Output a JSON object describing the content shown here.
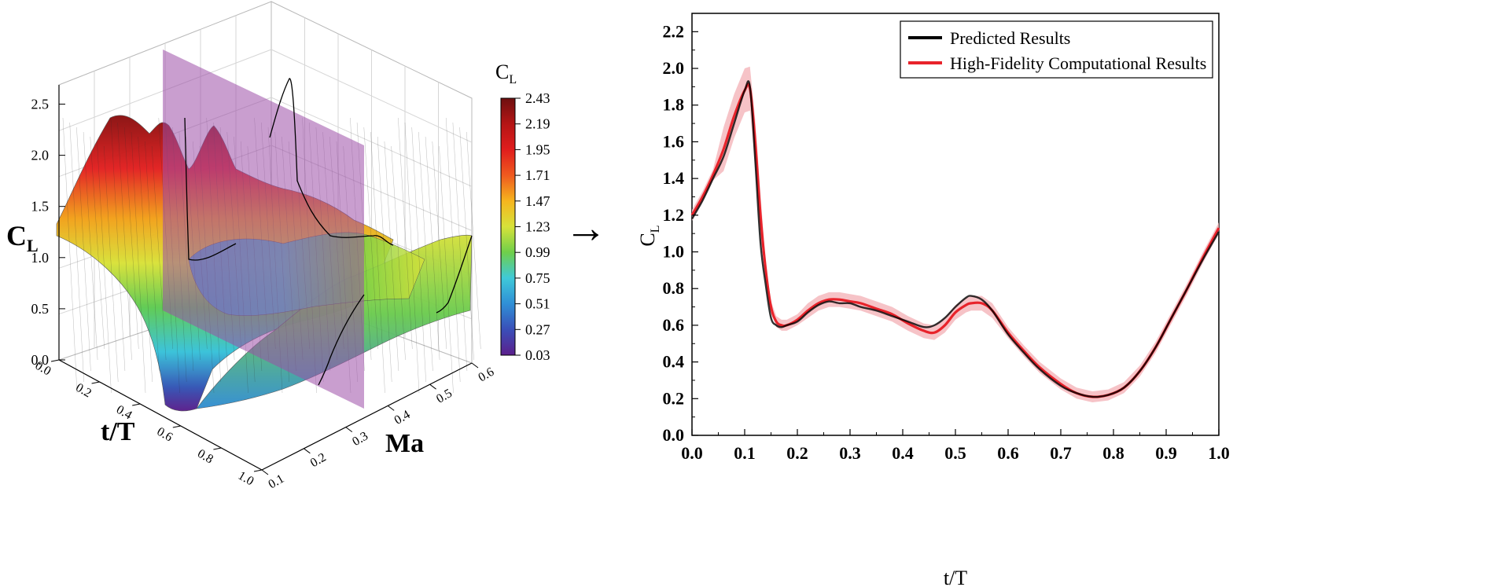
{
  "chart_data": [
    {
      "type": "surface3d",
      "title": "",
      "xlabel": "t/T",
      "ylabel": "Ma",
      "zlabel": "C",
      "zlabel_sub": "L",
      "x_ticks": [
        "0.0",
        "0.2",
        "0.4",
        "0.6",
        "0.8",
        "1.0"
      ],
      "y_ticks": [
        "0.1",
        "0.2",
        "0.3",
        "0.4",
        "0.5",
        "0.6"
      ],
      "z_ticks": [
        "0.0",
        "0.5",
        "1.0",
        "1.5",
        "2.0",
        "2.5"
      ],
      "xlim": [
        0,
        1
      ],
      "ylim": [
        0.1,
        0.6
      ],
      "zlim": [
        0,
        2.5
      ],
      "slice_plane_ma": 0.3,
      "slice_plane_color": "#9c4fa8",
      "colorbar": {
        "title": "C",
        "title_sub": "L",
        "ticks": [
          "0.03",
          "0.27",
          "0.51",
          "0.75",
          "0.99",
          "1.23",
          "1.47",
          "1.71",
          "1.95",
          "2.19",
          "2.43"
        ],
        "range": [
          0.03,
          2.43
        ],
        "colors": [
          "#5b1f8c",
          "#3a4fb8",
          "#2f8fd6",
          "#3fc9d9",
          "#6fcf4a",
          "#d7e23a",
          "#f6b51e",
          "#ef5a1f",
          "#e01d1d",
          "#b51515",
          "#6e1010"
        ]
      }
    },
    {
      "type": "line",
      "title": "",
      "xlabel": "t/T",
      "ylabel": "C",
      "ylabel_sub": "L",
      "xlim": [
        0,
        1
      ],
      "ylim": [
        0,
        2.3
      ],
      "x_ticks": [
        "0.0",
        "0.1",
        "0.2",
        "0.3",
        "0.4",
        "0.5",
        "0.6",
        "0.7",
        "0.8",
        "0.9",
        "1.0"
      ],
      "y_ticks": [
        "0.0",
        "0.2",
        "0.4",
        "0.6",
        "0.8",
        "1.0",
        "1.2",
        "1.4",
        "1.6",
        "1.8",
        "2.0",
        "2.2"
      ],
      "legend_position": "top-right",
      "series": [
        {
          "name": "Predicted Results",
          "color": "#000000",
          "x": [
            0.0,
            0.02,
            0.04,
            0.06,
            0.08,
            0.1,
            0.11,
            0.12,
            0.13,
            0.14,
            0.15,
            0.16,
            0.17,
            0.18,
            0.2,
            0.22,
            0.24,
            0.26,
            0.28,
            0.3,
            0.32,
            0.35,
            0.38,
            0.41,
            0.44,
            0.46,
            0.48,
            0.5,
            0.52,
            0.53,
            0.55,
            0.57,
            0.6,
            0.63,
            0.66,
            0.7,
            0.73,
            0.76,
            0.79,
            0.82,
            0.85,
            0.88,
            0.91,
            0.94,
            0.97,
            1.0
          ],
          "y": [
            1.18,
            1.28,
            1.4,
            1.52,
            1.7,
            1.88,
            1.9,
            1.5,
            1.05,
            0.82,
            0.64,
            0.6,
            0.59,
            0.6,
            0.62,
            0.67,
            0.71,
            0.73,
            0.72,
            0.72,
            0.7,
            0.68,
            0.65,
            0.62,
            0.59,
            0.6,
            0.64,
            0.7,
            0.75,
            0.76,
            0.74,
            0.68,
            0.55,
            0.45,
            0.36,
            0.27,
            0.23,
            0.21,
            0.22,
            0.26,
            0.35,
            0.48,
            0.64,
            0.8,
            0.96,
            1.11
          ]
        },
        {
          "name": "High-Fidelity Computational Results",
          "color": "#e8232b",
          "band_color": "#f5b8bd",
          "x": [
            0.0,
            0.02,
            0.04,
            0.06,
            0.08,
            0.1,
            0.11,
            0.12,
            0.13,
            0.14,
            0.15,
            0.16,
            0.17,
            0.18,
            0.2,
            0.22,
            0.24,
            0.26,
            0.28,
            0.3,
            0.32,
            0.35,
            0.38,
            0.41,
            0.44,
            0.46,
            0.48,
            0.5,
            0.52,
            0.53,
            0.55,
            0.57,
            0.6,
            0.63,
            0.66,
            0.7,
            0.73,
            0.76,
            0.79,
            0.82,
            0.85,
            0.88,
            0.91,
            0.94,
            0.97,
            1.0
          ],
          "y": [
            1.2,
            1.3,
            1.42,
            1.56,
            1.74,
            1.88,
            1.89,
            1.6,
            1.2,
            0.9,
            0.7,
            0.62,
            0.6,
            0.6,
            0.63,
            0.68,
            0.72,
            0.74,
            0.74,
            0.73,
            0.72,
            0.69,
            0.66,
            0.61,
            0.57,
            0.56,
            0.6,
            0.67,
            0.71,
            0.72,
            0.72,
            0.68,
            0.56,
            0.46,
            0.37,
            0.28,
            0.23,
            0.21,
            0.22,
            0.26,
            0.35,
            0.48,
            0.64,
            0.8,
            0.97,
            1.13
          ]
        }
      ]
    }
  ],
  "arrow_symbol": "→"
}
